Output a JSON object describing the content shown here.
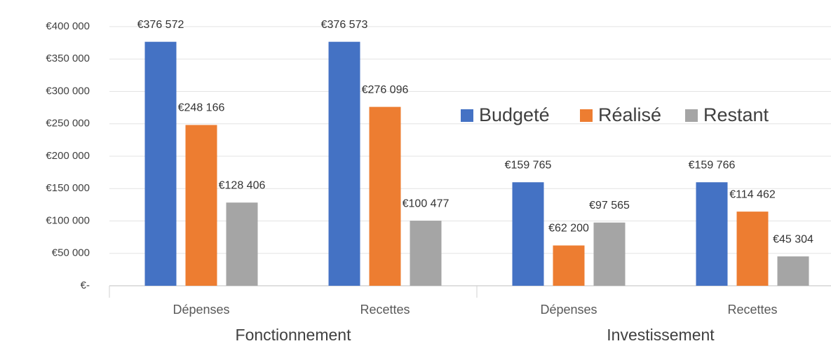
{
  "chart_data": {
    "type": "bar",
    "categories": [
      "Dépenses",
      "Recettes",
      "Dépenses",
      "Recettes"
    ],
    "group_labels": [
      "Fonctionnement",
      "Investissement"
    ],
    "series": [
      {
        "name": "Budgeté",
        "color": "#4472c4",
        "values": [
          376572,
          376573,
          159765,
          159766
        ],
        "value_labels": [
          "€376 572",
          "€376 573",
          "€159 765",
          "€159 766"
        ]
      },
      {
        "name": "Réalisé",
        "color": "#ed7d31",
        "values": [
          248166,
          276096,
          62200,
          114462
        ],
        "value_labels": [
          "€248 166",
          "€276 096",
          "€62 200",
          "€114 462"
        ]
      },
      {
        "name": "Restant",
        "color": "#a5a5a5",
        "values": [
          128406,
          100477,
          97565,
          45304
        ],
        "value_labels": [
          "€128 406",
          "€100 477",
          "€97 565",
          "€45 304"
        ]
      }
    ],
    "ylim": [
      0,
      400000
    ],
    "yticks": [
      {
        "value": 0,
        "label": "€-"
      },
      {
        "value": 50000,
        "label": "€50 000"
      },
      {
        "value": 100000,
        "label": "€100 000"
      },
      {
        "value": 150000,
        "label": "€150 000"
      },
      {
        "value": 200000,
        "label": "€200 000"
      },
      {
        "value": 250000,
        "label": "€250 000"
      },
      {
        "value": 300000,
        "label": "€300 000"
      },
      {
        "value": 350000,
        "label": "€350 000"
      },
      {
        "value": 400000,
        "label": "€400 000"
      }
    ],
    "grid": true,
    "legend": "upper right"
  }
}
